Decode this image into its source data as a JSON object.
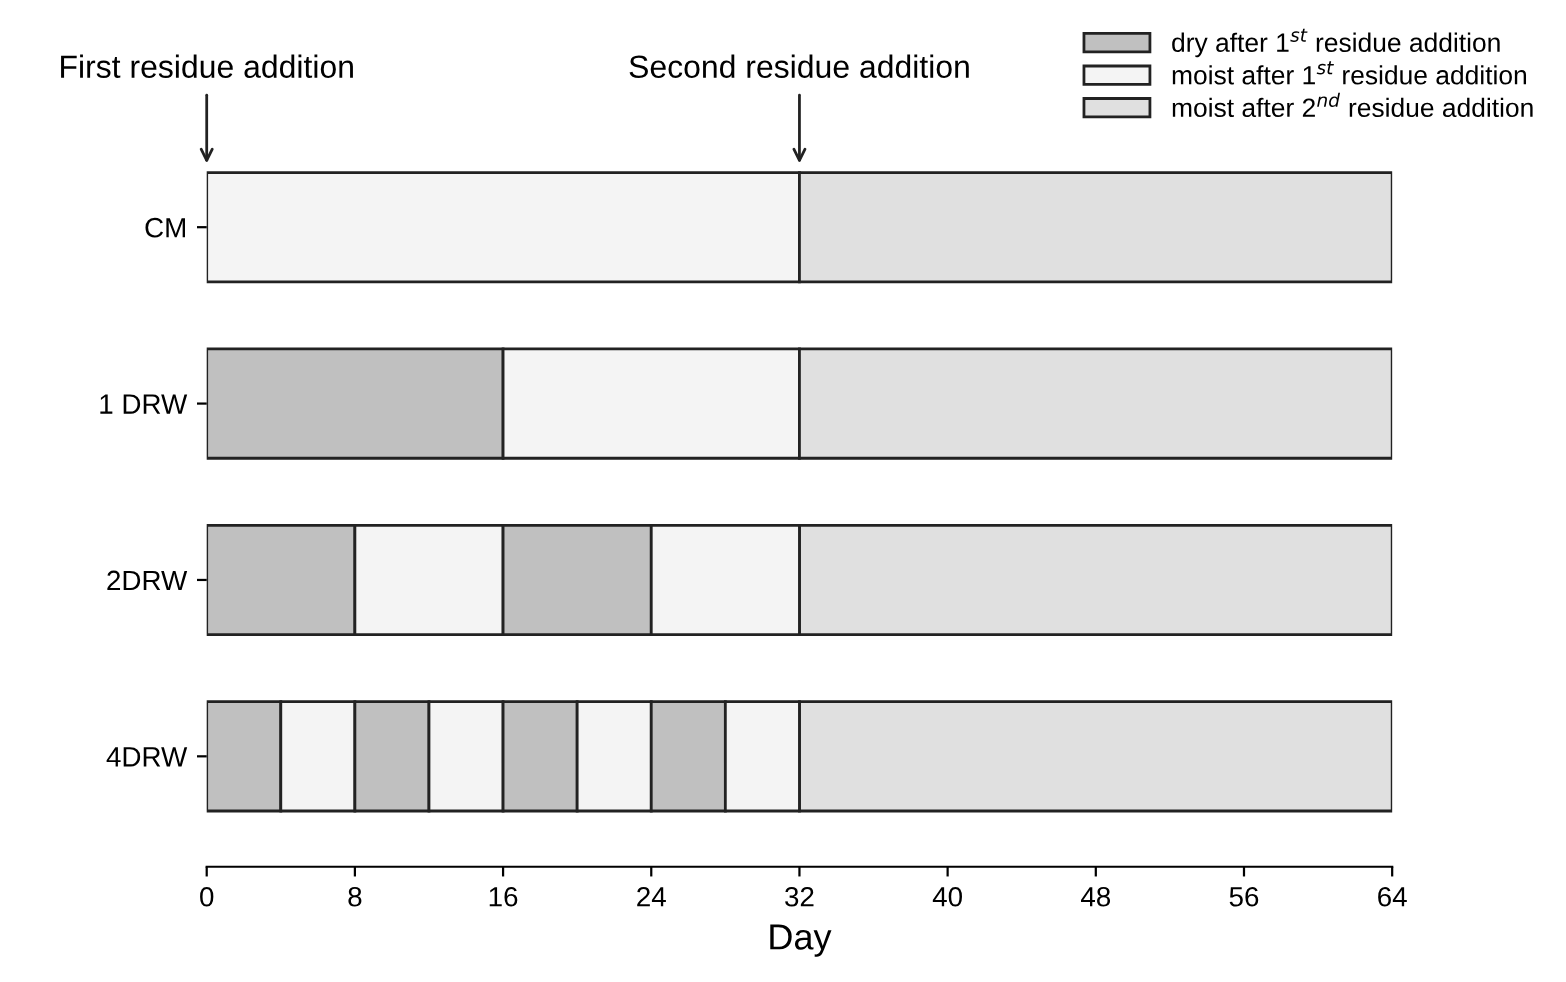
{
  "chart_data": {
    "type": "bar",
    "orientation": "horizontal",
    "xlabel": "Day",
    "categories": [
      "CM",
      "1 DRW",
      "2DRW",
      "4DRW"
    ],
    "xlim": [
      0,
      64
    ],
    "xticks": [
      0,
      8,
      16,
      24,
      32,
      40,
      48,
      56,
      64
    ],
    "grid": false,
    "legend": "top right",
    "series": [
      {
        "name": "dry after 1$^{st}$ residue addition",
        "color": "#c0c0c0",
        "values": [
          null,
          16,
          8,
          4
        ],
        "base": [
          null,
          0,
          0,
          0
        ]
      },
      {
        "name": "moist after 1$^{st}$ residue addition",
        "color": "#f4f4f4",
        "values": [
          32,
          16,
          8,
          4
        ],
        "base": [
          0,
          16,
          8,
          4
        ]
      },
      {
        "name": "moist after 2$^{nd}$ residue addition",
        "color": "#e0e0e0",
        "values": [
          32,
          32,
          32,
          32
        ],
        "base": [
          32,
          32,
          32,
          32
        ]
      },
      {
        "color": "#c0c0c0",
        "values": [
          null,
          null,
          8,
          4
        ],
        "base": [
          null,
          null,
          16,
          8
        ]
      },
      {
        "color": "#f4f4f4",
        "values": [
          null,
          null,
          8,
          4
        ],
        "base": [
          null,
          null,
          24,
          12
        ]
      },
      {
        "color": "#c0c0c0",
        "values": [
          null,
          null,
          null,
          4
        ],
        "base": [
          null,
          null,
          null,
          16
        ]
      },
      {
        "color": "#f4f4f4",
        "values": [
          null,
          null,
          null,
          4
        ],
        "base": [
          null,
          null,
          null,
          20
        ]
      },
      {
        "color": "#c0c0c0",
        "values": [
          null,
          null,
          null,
          4
        ],
        "base": [
          null,
          null,
          null,
          24
        ]
      },
      {
        "color": "#f4f4f4",
        "values": [
          null,
          null,
          null,
          4
        ],
        "base": [
          null,
          null,
          null,
          28
        ]
      }
    ],
    "annotations": [
      "First residue addition",
      "Second residue addition"
    ]
  }
}
